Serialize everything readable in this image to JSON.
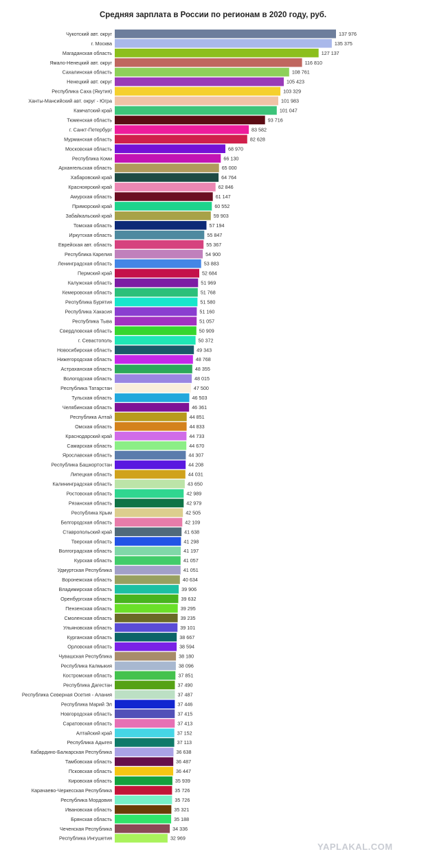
{
  "watermark": "YAPLAKAL.COM",
  "chart_data": {
    "type": "bar",
    "orientation": "horizontal",
    "title": "Средняя зарплата в России по регионам в 2020 году, руб.",
    "xlim": [
      0,
      140000
    ],
    "grid": false,
    "legend": "none",
    "bars": [
      {
        "label": "Чукотский авт. округ",
        "value": 137976,
        "value_label": "137 976",
        "color": "#6d7e9c"
      },
      {
        "label": "г. Москва",
        "value": 135375,
        "value_label": "135 375",
        "color": "#a9b8ea"
      },
      {
        "label": "Магаданская область",
        "value": 127137,
        "value_label": "127 137",
        "color": "#8cbf1c"
      },
      {
        "label": "Ямало-Ненецкий авт. округ",
        "value": 116810,
        "value_label": "116 810",
        "color": "#c0675f"
      },
      {
        "label": "Сахалинская область",
        "value": 108761,
        "value_label": "108 761",
        "color": "#8ed05a"
      },
      {
        "label": "Ненецкий авт. округ",
        "value": 105423,
        "value_label": "105 423",
        "color": "#9a3ab8"
      },
      {
        "label": "Республика Саха (Якутия)",
        "value": 103329,
        "value_label": "103 329",
        "color": "#f5d02e"
      },
      {
        "label": "Ханты-Мансийский авт. округ - Югра",
        "value": 101983,
        "value_label": "101 983",
        "color": "#efc3a6"
      },
      {
        "label": "Камчатский край",
        "value": 101047,
        "value_label": "101 047",
        "color": "#3cc47a"
      },
      {
        "label": "Тюменская область",
        "value": 93716,
        "value_label": "93 716",
        "color": "#5b0c14"
      },
      {
        "label": "г. Санкт-Петербург",
        "value": 83582,
        "value_label": "83 582",
        "color": "#ee1c9c"
      },
      {
        "label": "Мурманская область",
        "value": 82628,
        "value_label": "82 628",
        "color": "#d0204c"
      },
      {
        "label": "Московская область",
        "value": 68970,
        "value_label": "68 970",
        "color": "#7412d6"
      },
      {
        "label": "Республика Коми",
        "value": 66130,
        "value_label": "66 130",
        "color": "#c214b4"
      },
      {
        "label": "Архангельская область",
        "value": 65000,
        "value_label": "65 000",
        "color": "#b09a5c"
      },
      {
        "label": "Хабаровский край",
        "value": 64764,
        "value_label": "64 764",
        "color": "#1d4a43"
      },
      {
        "label": "Красноярский край",
        "value": 62846,
        "value_label": "62 846",
        "color": "#ec88b4"
      },
      {
        "label": "Амурская область",
        "value": 61147,
        "value_label": "61 147",
        "color": "#6b0f22"
      },
      {
        "label": "Приморский край",
        "value": 60552,
        "value_label": "60 552",
        "color": "#1fd38c"
      },
      {
        "label": "Забайкальский край",
        "value": 59903,
        "value_label": "59 903",
        "color": "#a8a248"
      },
      {
        "label": "Томская область",
        "value": 57194,
        "value_label": "57 194",
        "color": "#0d2a76"
      },
      {
        "label": "Иркутская область",
        "value": 55847,
        "value_label": "55 847",
        "color": "#4e8aa0"
      },
      {
        "label": "Еврейская авт. область",
        "value": 55367,
        "value_label": "55 367",
        "color": "#d6427e"
      },
      {
        "label": "Республика Карелия",
        "value": 54900,
        "value_label": "54 900",
        "color": "#c080bc"
      },
      {
        "label": "Ленинградская область",
        "value": 53883,
        "value_label": "53 883",
        "color": "#4486e6"
      },
      {
        "label": "Пермский край",
        "value": 52684,
        "value_label": "52 684",
        "color": "#c4114a"
      },
      {
        "label": "Калужская область",
        "value": 51969,
        "value_label": "51 969",
        "color": "#7d1ea4"
      },
      {
        "label": "Кемеровская область",
        "value": 51768,
        "value_label": "51 768",
        "color": "#2cc07a"
      },
      {
        "label": "Республика Бурятия",
        "value": 51580,
        "value_label": "51 580",
        "color": "#17e6cc"
      },
      {
        "label": "Республика Хакасия",
        "value": 51160,
        "value_label": "51 160",
        "color": "#8a3ed0"
      },
      {
        "label": "Республика Тыва",
        "value": 51057,
        "value_label": "51 057",
        "color": "#a232c0"
      },
      {
        "label": "Свердловская область",
        "value": 50909,
        "value_label": "50 909",
        "color": "#36d62e"
      },
      {
        "label": "г. Севастополь",
        "value": 50372,
        "value_label": "50 372",
        "color": "#20e6b6"
      },
      {
        "label": "Новосибирская область",
        "value": 49343,
        "value_label": "49 343",
        "color": "#1a5a6a"
      },
      {
        "label": "Нижегородская область",
        "value": 48768,
        "value_label": "48 768",
        "color": "#c528e8"
      },
      {
        "label": "Астраханская область",
        "value": 48355,
        "value_label": "48 355",
        "color": "#2ca85a"
      },
      {
        "label": "Вологодская область",
        "value": 48015,
        "value_label": "48 015",
        "color": "#9a86e2"
      },
      {
        "label": "Республика Татарстан",
        "value": 47500,
        "value_label": "47 500",
        "color": "#fbeedc"
      },
      {
        "label": "Тульская область",
        "value": 46503,
        "value_label": "46 503",
        "color": "#22a8dc"
      },
      {
        "label": "Челябинская область",
        "value": 46361,
        "value_label": "46 361",
        "color": "#7e1296"
      },
      {
        "label": "Республика Алтай",
        "value": 44851,
        "value_label": "44 851",
        "color": "#b89a1c"
      },
      {
        "label": "Омская область",
        "value": 44833,
        "value_label": "44 833",
        "color": "#d4821c"
      },
      {
        "label": "Краснодарский край",
        "value": 44733,
        "value_label": "44 733",
        "color": "#d06ce8"
      },
      {
        "label": "Самарская область",
        "value": 44670,
        "value_label": "44 670",
        "color": "#8cee86"
      },
      {
        "label": "Ярославская область",
        "value": 44307,
        "value_label": "44 307",
        "color": "#5a7cac"
      },
      {
        "label": "Республика Башкортостан",
        "value": 44208,
        "value_label": "44 208",
        "color": "#5a18e0"
      },
      {
        "label": "Липецкая область",
        "value": 44031,
        "value_label": "44 031",
        "color": "#d0a21c"
      },
      {
        "label": "Калининградская область",
        "value": 43650,
        "value_label": "43 650",
        "color": "#bce4a8"
      },
      {
        "label": "Ростовская область",
        "value": 42989,
        "value_label": "42 989",
        "color": "#30d690"
      },
      {
        "label": "Рязанская область",
        "value": 42979,
        "value_label": "42 979",
        "color": "#0f7446"
      },
      {
        "label": "Республика Крым",
        "value": 42505,
        "value_label": "42 505",
        "color": "#dcce8e"
      },
      {
        "label": "Белгородская область",
        "value": 42109,
        "value_label": "42 109",
        "color": "#e87caa"
      },
      {
        "label": "Ставропольский край",
        "value": 41638,
        "value_label": "41 638",
        "color": "#506a7a"
      },
      {
        "label": "Тверская область",
        "value": 41298,
        "value_label": "41 298",
        "color": "#2254e6"
      },
      {
        "label": "Волгоградская область",
        "value": 41197,
        "value_label": "41 197",
        "color": "#80d8a8"
      },
      {
        "label": "Курская область",
        "value": 41057,
        "value_label": "41 057",
        "color": "#42cc6a"
      },
      {
        "label": "Удмуртская Республика",
        "value": 41051,
        "value_label": "41 051",
        "color": "#a2a0c8"
      },
      {
        "label": "Воронежская область",
        "value": 40634,
        "value_label": "40 634",
        "color": "#98a060"
      },
      {
        "label": "Владимирская область",
        "value": 39906,
        "value_label": "39 906",
        "color": "#1cc0a2"
      },
      {
        "label": "Оренбургская область",
        "value": 39632,
        "value_label": "39 632",
        "color": "#48b41e"
      },
      {
        "label": "Пензенская область",
        "value": 39295,
        "value_label": "39 295",
        "color": "#6ae028"
      },
      {
        "label": "Смоленская область",
        "value": 39235,
        "value_label": "39 235",
        "color": "#6a6a26"
      },
      {
        "label": "Ульяновская область",
        "value": 39101,
        "value_label": "39 101",
        "color": "#5a4cd6"
      },
      {
        "label": "Курганская область",
        "value": 38667,
        "value_label": "38 667",
        "color": "#0c6468"
      },
      {
        "label": "Орловская область",
        "value": 38594,
        "value_label": "38 594",
        "color": "#7a22e6"
      },
      {
        "label": "Чувашская Республика",
        "value": 38180,
        "value_label": "38 180",
        "color": "#a88c6a"
      },
      {
        "label": "Республика Калмыкия",
        "value": 38096,
        "value_label": "38 096",
        "color": "#a8b8d0"
      },
      {
        "label": "Костромская область",
        "value": 37851,
        "value_label": "37 851",
        "color": "#44c24e"
      },
      {
        "label": "Республика Дагестан",
        "value": 37490,
        "value_label": "37 490",
        "color": "#56a214"
      },
      {
        "label": "Республика Северная Осетия - Алания",
        "value": 37487,
        "value_label": "37 487",
        "color": "#bce0c4"
      },
      {
        "label": "Республика Марий Эл",
        "value": 37446,
        "value_label": "37 446",
        "color": "#1226d0"
      },
      {
        "label": "Новгородская область",
        "value": 37415,
        "value_label": "37 415",
        "color": "#5250b8"
      },
      {
        "label": "Саратовская область",
        "value": 37413,
        "value_label": "37 413",
        "color": "#e670b4"
      },
      {
        "label": "Алтайский край",
        "value": 37152,
        "value_label": "37 152",
        "color": "#46d6e6"
      },
      {
        "label": "Республика Адыгея",
        "value": 37113,
        "value_label": "37 113",
        "color": "#0f7a6a"
      },
      {
        "label": "Кабардино-Балкарская Республика",
        "value": 36638,
        "value_label": "36 638",
        "color": "#aaa2e6"
      },
      {
        "label": "Тамбовская область",
        "value": 36487,
        "value_label": "36 487",
        "color": "#660f4a"
      },
      {
        "label": "Псковская область",
        "value": 36447,
        "value_label": "36 447",
        "color": "#f4c614"
      },
      {
        "label": "Кировская область",
        "value": 35939,
        "value_label": "35 939",
        "color": "#14a03e"
      },
      {
        "label": "Карачаево-Черкесская Республика",
        "value": 35726,
        "value_label": "35 726",
        "color": "#c21438"
      },
      {
        "label": "Республика Мордовия",
        "value": 35726,
        "value_label": "35 726",
        "color": "#76f0c8"
      },
      {
        "label": "Ивановская область",
        "value": 35321,
        "value_label": "35 321",
        "color": "#6a3c06"
      },
      {
        "label": "Брянская область",
        "value": 35188,
        "value_label": "35 188",
        "color": "#30e46a"
      },
      {
        "label": "Чеченская Республика",
        "value": 34336,
        "value_label": "34 336",
        "color": "#8a4a56"
      },
      {
        "label": "Республика Ингушетия",
        "value": 32969,
        "value_label": "32 969",
        "color": "#aaf25c"
      }
    ]
  }
}
